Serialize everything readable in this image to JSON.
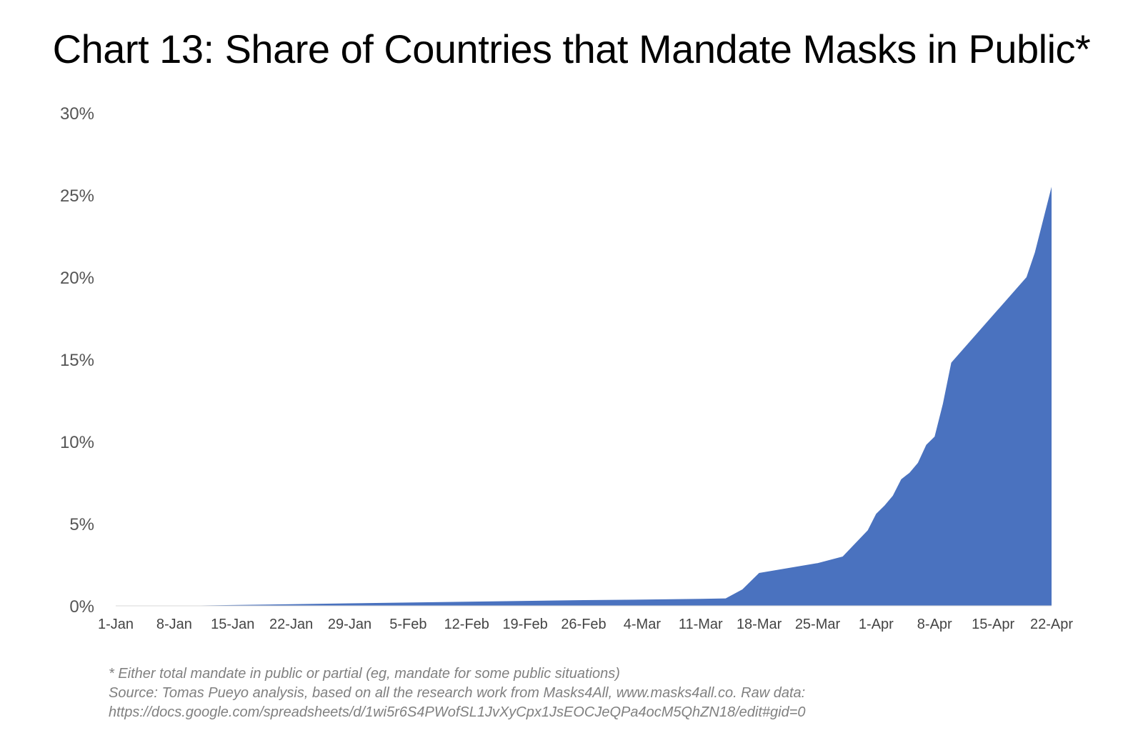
{
  "chart_data": {
    "type": "area",
    "title": "Chart 13: Share of Countries that Mandate Masks in Public*",
    "xlabel": "",
    "ylabel": "",
    "ylim": [
      0,
      30
    ],
    "y_ticks": [
      "0%",
      "5%",
      "10%",
      "15%",
      "20%",
      "25%",
      "30%"
    ],
    "y_tick_values": [
      0,
      5,
      10,
      15,
      20,
      25,
      30
    ],
    "x_range": [
      "2020-01-01",
      "2020-04-22"
    ],
    "x_ticks": [
      {
        "date": "2020-01-01",
        "label": "1-Jan"
      },
      {
        "date": "2020-01-08",
        "label": "8-Jan"
      },
      {
        "date": "2020-01-15",
        "label": "15-Jan"
      },
      {
        "date": "2020-01-22",
        "label": "22-Jan"
      },
      {
        "date": "2020-01-29",
        "label": "29-Jan"
      },
      {
        "date": "2020-02-05",
        "label": "5-Feb"
      },
      {
        "date": "2020-02-12",
        "label": "12-Feb"
      },
      {
        "date": "2020-02-19",
        "label": "19-Feb"
      },
      {
        "date": "2020-02-26",
        "label": "26-Feb"
      },
      {
        "date": "2020-03-04",
        "label": "4-Mar"
      },
      {
        "date": "2020-03-11",
        "label": "11-Mar"
      },
      {
        "date": "2020-03-18",
        "label": "18-Mar"
      },
      {
        "date": "2020-03-25",
        "label": "25-Mar"
      },
      {
        "date": "2020-04-01",
        "label": "1-Apr"
      },
      {
        "date": "2020-04-08",
        "label": "8-Apr"
      },
      {
        "date": "2020-04-15",
        "label": "15-Apr"
      },
      {
        "date": "2020-04-22",
        "label": "22-Apr"
      }
    ],
    "grid": false,
    "color": "#4a72bf",
    "series": [
      {
        "values": [
          {
            "x": "2020-01-01",
            "y": 0.0
          },
          {
            "x": "2020-01-08",
            "y": 0.0
          },
          {
            "x": "2020-01-15",
            "y": 0.05
          },
          {
            "x": "2020-01-22",
            "y": 0.1
          },
          {
            "x": "2020-01-29",
            "y": 0.15
          },
          {
            "x": "2020-02-05",
            "y": 0.2
          },
          {
            "x": "2020-02-12",
            "y": 0.25
          },
          {
            "x": "2020-02-19",
            "y": 0.3
          },
          {
            "x": "2020-02-26",
            "y": 0.35
          },
          {
            "x": "2020-03-04",
            "y": 0.38
          },
          {
            "x": "2020-03-11",
            "y": 0.42
          },
          {
            "x": "2020-03-14",
            "y": 0.45
          },
          {
            "x": "2020-03-16",
            "y": 1.0
          },
          {
            "x": "2020-03-18",
            "y": 2.0
          },
          {
            "x": "2020-03-25",
            "y": 2.6
          },
          {
            "x": "2020-03-28",
            "y": 3.0
          },
          {
            "x": "2020-03-31",
            "y": 4.6
          },
          {
            "x": "2020-04-01",
            "y": 5.6
          },
          {
            "x": "2020-04-02",
            "y": 6.1
          },
          {
            "x": "2020-04-03",
            "y": 6.7
          },
          {
            "x": "2020-04-04",
            "y": 7.7
          },
          {
            "x": "2020-04-05",
            "y": 8.1
          },
          {
            "x": "2020-04-06",
            "y": 8.7
          },
          {
            "x": "2020-04-07",
            "y": 9.8
          },
          {
            "x": "2020-04-08",
            "y": 10.3
          },
          {
            "x": "2020-04-09",
            "y": 12.3
          },
          {
            "x": "2020-04-10",
            "y": 14.8
          },
          {
            "x": "2020-04-19",
            "y": 20.0
          },
          {
            "x": "2020-04-20",
            "y": 21.5
          },
          {
            "x": "2020-04-21",
            "y": 23.5
          },
          {
            "x": "2020-04-22",
            "y": 25.5
          }
        ]
      }
    ]
  },
  "footnotes": {
    "line1": "* Either total mandate in public or partial (eg, mandate for some public situations)",
    "line2": "Source: Tomas Pueyo analysis, based on all the research work from Masks4All, www.masks4all.co. Raw data:",
    "line3": "https://docs.google.com/spreadsheets/d/1wi5r6S4PWofSL1JvXyCpx1JsEOCJeQPa4ocM5QhZN18/edit#gid=0"
  }
}
